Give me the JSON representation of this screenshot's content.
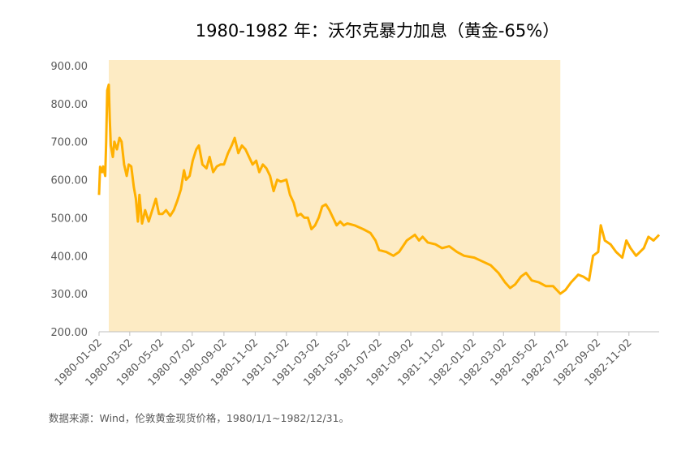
{
  "chart_data": {
    "type": "line",
    "title": "1980-1982 年：沃尔克暴力加息（黄金-65%）",
    "source": "数据来源：Wind，伦敦黄金现货价格，1980/1/1~1982/12/31。",
    "shade": [
      "1980-01-21",
      "1982-06-21"
    ],
    "shade_color": "#fdebc4",
    "xlim": [
      "1980-01-02",
      "1982-12-31"
    ],
    "xticks": [
      "1980-01-02",
      "1980-03-02",
      "1980-05-02",
      "1980-07-02",
      "1980-09-02",
      "1980-11-02",
      "1981-01-02",
      "1981-03-02",
      "1981-05-02",
      "1981-07-02",
      "1981-09-02",
      "1981-11-02",
      "1982-01-02",
      "1982-03-02",
      "1982-05-02",
      "1982-07-02",
      "1982-09-02",
      "1982-11-02"
    ],
    "ylim": [
      200,
      900
    ],
    "yticks": [
      {
        "value": 200,
        "label": "200.00"
      },
      {
        "value": 300,
        "label": "300.00"
      },
      {
        "value": 400,
        "label": "400.00"
      },
      {
        "value": 500,
        "label": "500.00"
      },
      {
        "value": 600,
        "label": "600.00"
      },
      {
        "value": 700,
        "label": "700.00"
      },
      {
        "value": 800,
        "label": "800.00"
      },
      {
        "value": 900,
        "label": "900.00"
      }
    ],
    "x": [
      "1980-01-02",
      "1980-01-04",
      "1980-01-08",
      "1980-01-10",
      "1980-01-14",
      "1980-01-16",
      "1980-01-18",
      "1980-01-21",
      "1980-01-23",
      "1980-01-25",
      "1980-01-29",
      "1980-02-01",
      "1980-02-06",
      "1980-02-11",
      "1980-02-15",
      "1980-02-20",
      "1980-02-25",
      "1980-02-29",
      "1980-03-05",
      "1980-03-10",
      "1980-03-14",
      "1980-03-18",
      "1980-03-21",
      "1980-03-26",
      "1980-04-01",
      "1980-04-08",
      "1980-04-15",
      "1980-04-22",
      "1980-04-28",
      "1980-05-05",
      "1980-05-12",
      "1980-05-20",
      "1980-05-27",
      "1980-06-03",
      "1980-06-10",
      "1980-06-16",
      "1980-06-20",
      "1980-06-27",
      "1980-07-03",
      "1980-07-10",
      "1980-07-15",
      "1980-07-22",
      "1980-07-30",
      "1980-08-05",
      "1980-08-12",
      "1980-08-19",
      "1980-08-26",
      "1980-09-02",
      "1980-09-10",
      "1980-09-17",
      "1980-09-23",
      "1980-09-30",
      "1980-10-07",
      "1980-10-14",
      "1980-10-21",
      "1980-10-28",
      "1980-11-04",
      "1980-11-10",
      "1980-11-17",
      "1980-11-24",
      "1980-12-01",
      "1980-12-08",
      "1980-12-15",
      "1980-12-22",
      "1981-01-02",
      "1981-01-09",
      "1981-01-16",
      "1981-01-23",
      "1981-01-30",
      "1981-02-06",
      "1981-02-13",
      "1981-02-20",
      "1981-02-27",
      "1981-03-06",
      "1981-03-13",
      "1981-03-20",
      "1981-03-27",
      "1981-04-03",
      "1981-04-10",
      "1981-04-17",
      "1981-04-24",
      "1981-05-01",
      "1981-05-15",
      "1981-06-01",
      "1981-06-15",
      "1981-06-25",
      "1981-07-02",
      "1981-07-16",
      "1981-07-30",
      "1981-08-10",
      "1981-08-25",
      "1981-09-10",
      "1981-09-18",
      "1981-09-25",
      "1981-10-05",
      "1981-10-20",
      "1981-11-02",
      "1981-11-16",
      "1981-12-01",
      "1981-12-15",
      "1982-01-04",
      "1982-01-20",
      "1982-02-05",
      "1982-02-20",
      "1982-03-05",
      "1982-03-15",
      "1982-03-25",
      "1982-04-05",
      "1982-04-15",
      "1982-04-26",
      "1982-05-10",
      "1982-05-24",
      "1982-06-07",
      "1982-06-21",
      "1982-07-01",
      "1982-07-12",
      "1982-07-26",
      "1982-08-05",
      "1982-08-16",
      "1982-08-24",
      "1982-09-03",
      "1982-09-08",
      "1982-09-16",
      "1982-09-27",
      "1982-10-08",
      "1982-10-20",
      "1982-10-28",
      "1982-11-05",
      "1982-11-16",
      "1982-12-01",
      "1982-12-10",
      "1982-12-20",
      "1982-12-31"
    ],
    "series": [
      {
        "color": "#ffb000",
        "values": [
          560,
          634,
          620,
          635,
          610,
          700,
          835,
          850,
          760,
          690,
          660,
          700,
          680,
          710,
          700,
          640,
          610,
          640,
          635,
          580,
          550,
          490,
          560,
          485,
          520,
          490,
          520,
          550,
          510,
          510,
          520,
          505,
          520,
          545,
          575,
          625,
          600,
          610,
          650,
          680,
          690,
          640,
          630,
          660,
          620,
          635,
          640,
          640,
          670,
          690,
          710,
          670,
          690,
          680,
          660,
          640,
          650,
          620,
          640,
          630,
          610,
          570,
          600,
          595,
          600,
          560,
          540,
          505,
          510,
          500,
          500,
          470,
          480,
          500,
          530,
          535,
          520,
          500,
          480,
          490,
          480,
          485,
          480,
          470,
          460,
          440,
          415,
          410,
          400,
          410,
          440,
          455,
          440,
          450,
          435,
          430,
          420,
          425,
          410,
          400,
          395,
          385,
          375,
          355,
          330,
          315,
          325,
          345,
          355,
          335,
          330,
          320,
          320,
          300,
          310,
          330,
          350,
          345,
          335,
          400,
          410,
          480,
          440,
          430,
          410,
          395,
          440,
          420,
          400,
          420,
          450,
          440,
          455
        ]
      }
    ]
  }
}
